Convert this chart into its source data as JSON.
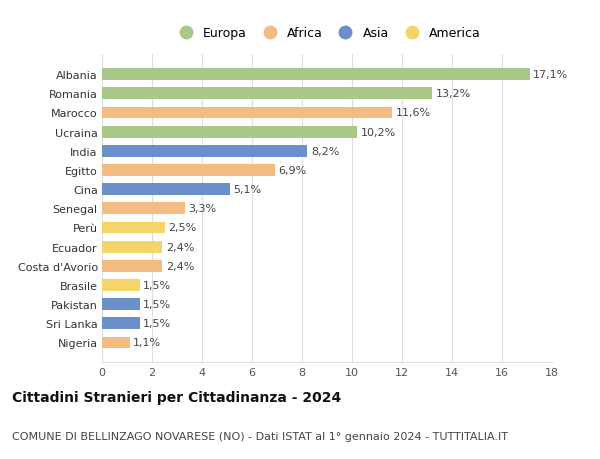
{
  "title": "Cittadini Stranieri per Cittadinanza - 2024",
  "subtitle": "COMUNE DI BELLINZAGO NOVARESE (NO) - Dati ISTAT al 1° gennaio 2024 - TUTTITALIA.IT",
  "categories": [
    "Albania",
    "Romania",
    "Marocco",
    "Ucraina",
    "India",
    "Egitto",
    "Cina",
    "Senegal",
    "Perù",
    "Ecuador",
    "Costa d'Avorio",
    "Brasile",
    "Pakistan",
    "Sri Lanka",
    "Nigeria"
  ],
  "values": [
    17.1,
    13.2,
    11.6,
    10.2,
    8.2,
    6.9,
    5.1,
    3.3,
    2.5,
    2.4,
    2.4,
    1.5,
    1.5,
    1.5,
    1.1
  ],
  "labels": [
    "17,1%",
    "13,2%",
    "11,6%",
    "10,2%",
    "8,2%",
    "6,9%",
    "5,1%",
    "3,3%",
    "2,5%",
    "2,4%",
    "2,4%",
    "1,5%",
    "1,5%",
    "1,5%",
    "1,1%"
  ],
  "continents": [
    "Europa",
    "Europa",
    "Africa",
    "Europa",
    "Asia",
    "Africa",
    "Asia",
    "Africa",
    "America",
    "America",
    "Africa",
    "America",
    "Asia",
    "Asia",
    "Africa"
  ],
  "continent_colors": {
    "Europa": "#a8c88a",
    "Africa": "#f2bc82",
    "Asia": "#6b8fc8",
    "America": "#f5d46a"
  },
  "legend_order": [
    "Europa",
    "Africa",
    "Asia",
    "America"
  ],
  "xlim": [
    0,
    18
  ],
  "xticks": [
    0,
    2,
    4,
    6,
    8,
    10,
    12,
    14,
    16,
    18
  ],
  "background_color": "#ffffff",
  "grid_color": "#dddddd",
  "bar_height": 0.62,
  "title_fontsize": 10,
  "subtitle_fontsize": 8,
  "label_fontsize": 8,
  "tick_fontsize": 8,
  "legend_fontsize": 9
}
